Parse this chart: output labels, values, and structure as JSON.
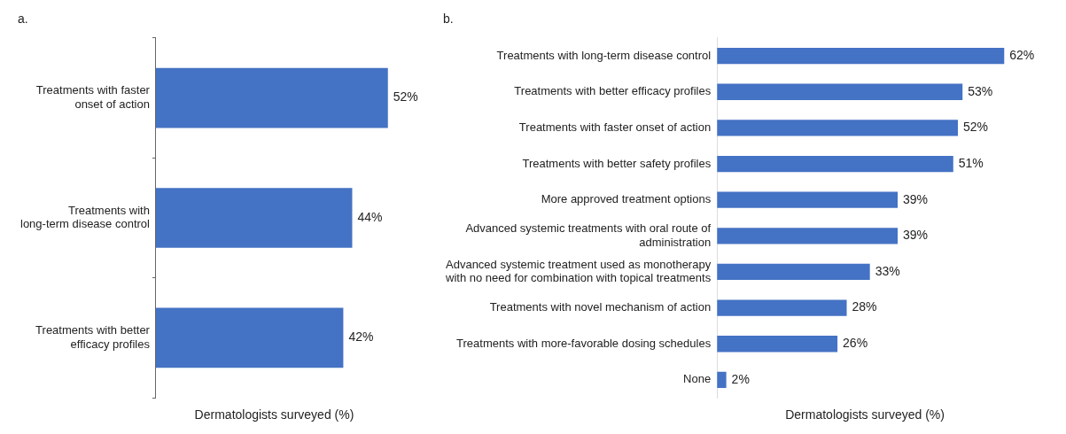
{
  "chart_data": [
    {
      "type": "bar",
      "orientation": "horizontal",
      "title": "a.",
      "xlabel": "Dermatologists surveyed (%)",
      "categories": [
        "Treatments with faster onset of action",
        "Treatments with long-term disease control",
        "Treatments with better efficacy profiles"
      ],
      "values": [
        52,
        44,
        42
      ],
      "value_labels": [
        "52%",
        "44%",
        "42%"
      ],
      "color": "#4472c4"
    },
    {
      "type": "bar",
      "orientation": "horizontal",
      "title": "b.",
      "xlabel": "Dermatologists surveyed (%)",
      "categories": [
        "Treatments with long-term disease control",
        "Treatments with better efficacy profiles",
        "Treatments with faster onset of action",
        "Treatments with better safety profiles",
        "More approved treatment options",
        "Advanced systemic treatments with oral route of administration",
        "Advanced systemic treatment used as monotherapy with no need for combination with topical treatments",
        "Treatments with novel mechanism of action",
        "Treatments with more-favorable dosing schedules",
        "None"
      ],
      "values": [
        62,
        53,
        52,
        51,
        39,
        39,
        33,
        28,
        26,
        2
      ],
      "value_labels": [
        "62%",
        "53%",
        "52%",
        "51%",
        "39%",
        "39%",
        "33%",
        "28%",
        "26%",
        "2%"
      ],
      "color": "#4472c4"
    }
  ]
}
